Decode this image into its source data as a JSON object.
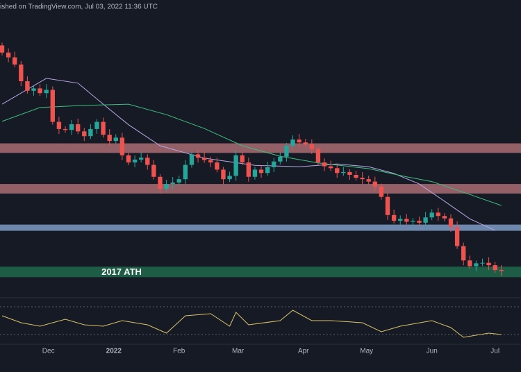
{
  "chart_data": {
    "type": "candlestick",
    "header": "ished on TradingView.com, Jul 03, 2022 11:36 UTC",
    "annotation": "2017 ATH",
    "xlim": [
      -0.33,
      82.1
    ],
    "ylim": [
      15000,
      76000
    ],
    "xticks": [
      {
        "value": 7.33,
        "label": "Dec"
      },
      {
        "value": 17.67,
        "label": "2022"
      },
      {
        "value": 28,
        "label": "Feb"
      },
      {
        "value": 37.33,
        "label": "Mar"
      },
      {
        "value": 47.67,
        "label": "Apr"
      },
      {
        "value": 57.67,
        "label": "May"
      },
      {
        "value": 68,
        "label": "Jun"
      },
      {
        "value": 78,
        "label": "Jul"
      }
    ],
    "up_color": "#26a69a",
    "down_color": "#ef5350",
    "first_open": 66500,
    "closes": [
      65000,
      64000,
      62500,
      59000,
      57000,
      57500,
      56500,
      57200,
      50500,
      49000,
      48800,
      50000,
      48500,
      47500,
      49000,
      50500,
      47800,
      46500,
      47200,
      43500,
      42000,
      42600,
      43000,
      41500,
      39000,
      36500,
      37500,
      37800,
      38500,
      41500,
      43700,
      43000,
      42500,
      42000,
      40500,
      38500,
      39200,
      43500,
      42000,
      39000,
      40500,
      39800,
      41000,
      42200,
      43200,
      45500,
      46800,
      46200,
      45800,
      44800,
      42000,
      41200,
      40800,
      39800,
      40000,
      39400,
      38800,
      38500,
      38000,
      37000,
      34800,
      31000,
      29800,
      30200,
      29600,
      29800,
      29400,
      30500,
      31500,
      30800,
      30300,
      28500,
      24500,
      21500,
      20300,
      20900,
      21000,
      20500,
      19500,
      19300
    ],
    "zones": [
      {
        "range": [
          44000,
          46000
        ],
        "color": "#a96d73"
      },
      {
        "range": [
          35500,
          37500
        ],
        "color": "#a96d73"
      },
      {
        "range": [
          27700,
          29000
        ],
        "color": "#7d9cc4"
      },
      {
        "range": [
          18000,
          20200
        ],
        "color": "#1e6a4c"
      }
    ],
    "moving_averages": [
      {
        "color": "#b7a8e6",
        "x": [
          0,
          7,
          12,
          16,
          20,
          25,
          32,
          40,
          47,
          53,
          58,
          62,
          66,
          70,
          74,
          78
        ],
        "values": [
          54200,
          59600,
          58600,
          54200,
          49900,
          45500,
          42900,
          41400,
          41100,
          41700,
          41100,
          39700,
          37500,
          33900,
          30200,
          27800
        ]
      },
      {
        "color": "#3fbf7f",
        "x": [
          0,
          6,
          12,
          20,
          26,
          32,
          38,
          44,
          50,
          58,
          64,
          68,
          74,
          79
        ],
        "values": [
          50600,
          53500,
          53900,
          54200,
          52000,
          49100,
          45500,
          43300,
          41900,
          40700,
          39000,
          38000,
          35300,
          33000
        ]
      }
    ],
    "rsi": {
      "ylim": [
        20,
        80
      ],
      "levels": [
        70,
        30
      ],
      "color": "#d9c46a",
      "x": [
        0,
        3,
        6,
        10,
        13,
        16,
        19,
        23,
        26,
        29,
        33,
        36,
        37,
        39,
        44,
        46,
        49,
        52,
        57,
        60,
        63,
        68,
        71,
        73,
        77,
        79
      ],
      "values": [
        57,
        47,
        42,
        52,
        44,
        42,
        50,
        44,
        32,
        57,
        60,
        42,
        62,
        44,
        50,
        65,
        50,
        50,
        47,
        34,
        42,
        50,
        40,
        26,
        32,
        30
      ]
    }
  }
}
